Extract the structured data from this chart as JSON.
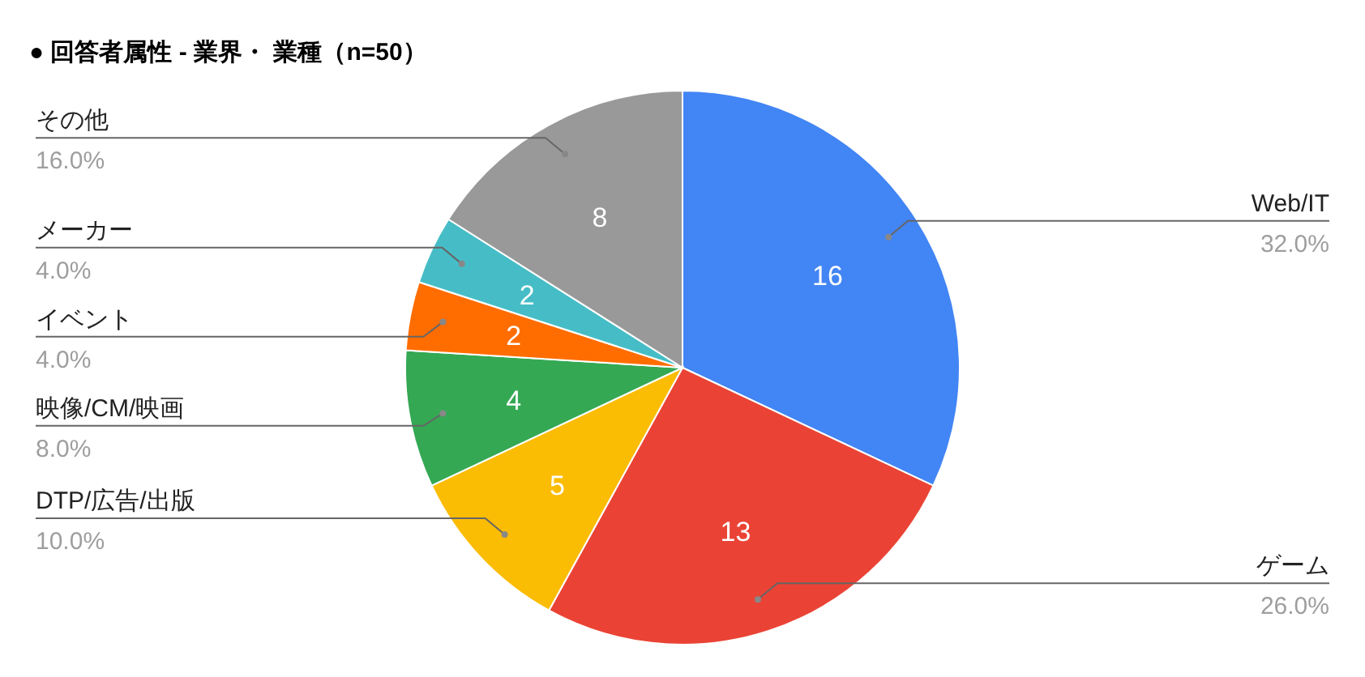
{
  "chart_data": {
    "type": "pie",
    "title": "● 回答者属性 - 業界・ 業種（n=50）",
    "categories": [
      "Web/IT",
      "ゲーム",
      "DTP/広告/出版",
      "映像/CM/映画",
      "イベント",
      "メーカー",
      "その他"
    ],
    "values": [
      32,
      26,
      10,
      8,
      4,
      4,
      16
    ],
    "colors": [
      "#4285f4",
      "#ea4335",
      "#fbbc04",
      "#34a853",
      "#ff6d01",
      "#46bdc6",
      "#999999"
    ],
    "value_labels": [
      "32.0%",
      "26.0%",
      "10.0%",
      "8.0%",
      "4.0%",
      "4.0%",
      "16.0%"
    ],
    "annotations": [
      "16",
      "13",
      "5",
      "4",
      "2",
      "2",
      "8"
    ]
  }
}
